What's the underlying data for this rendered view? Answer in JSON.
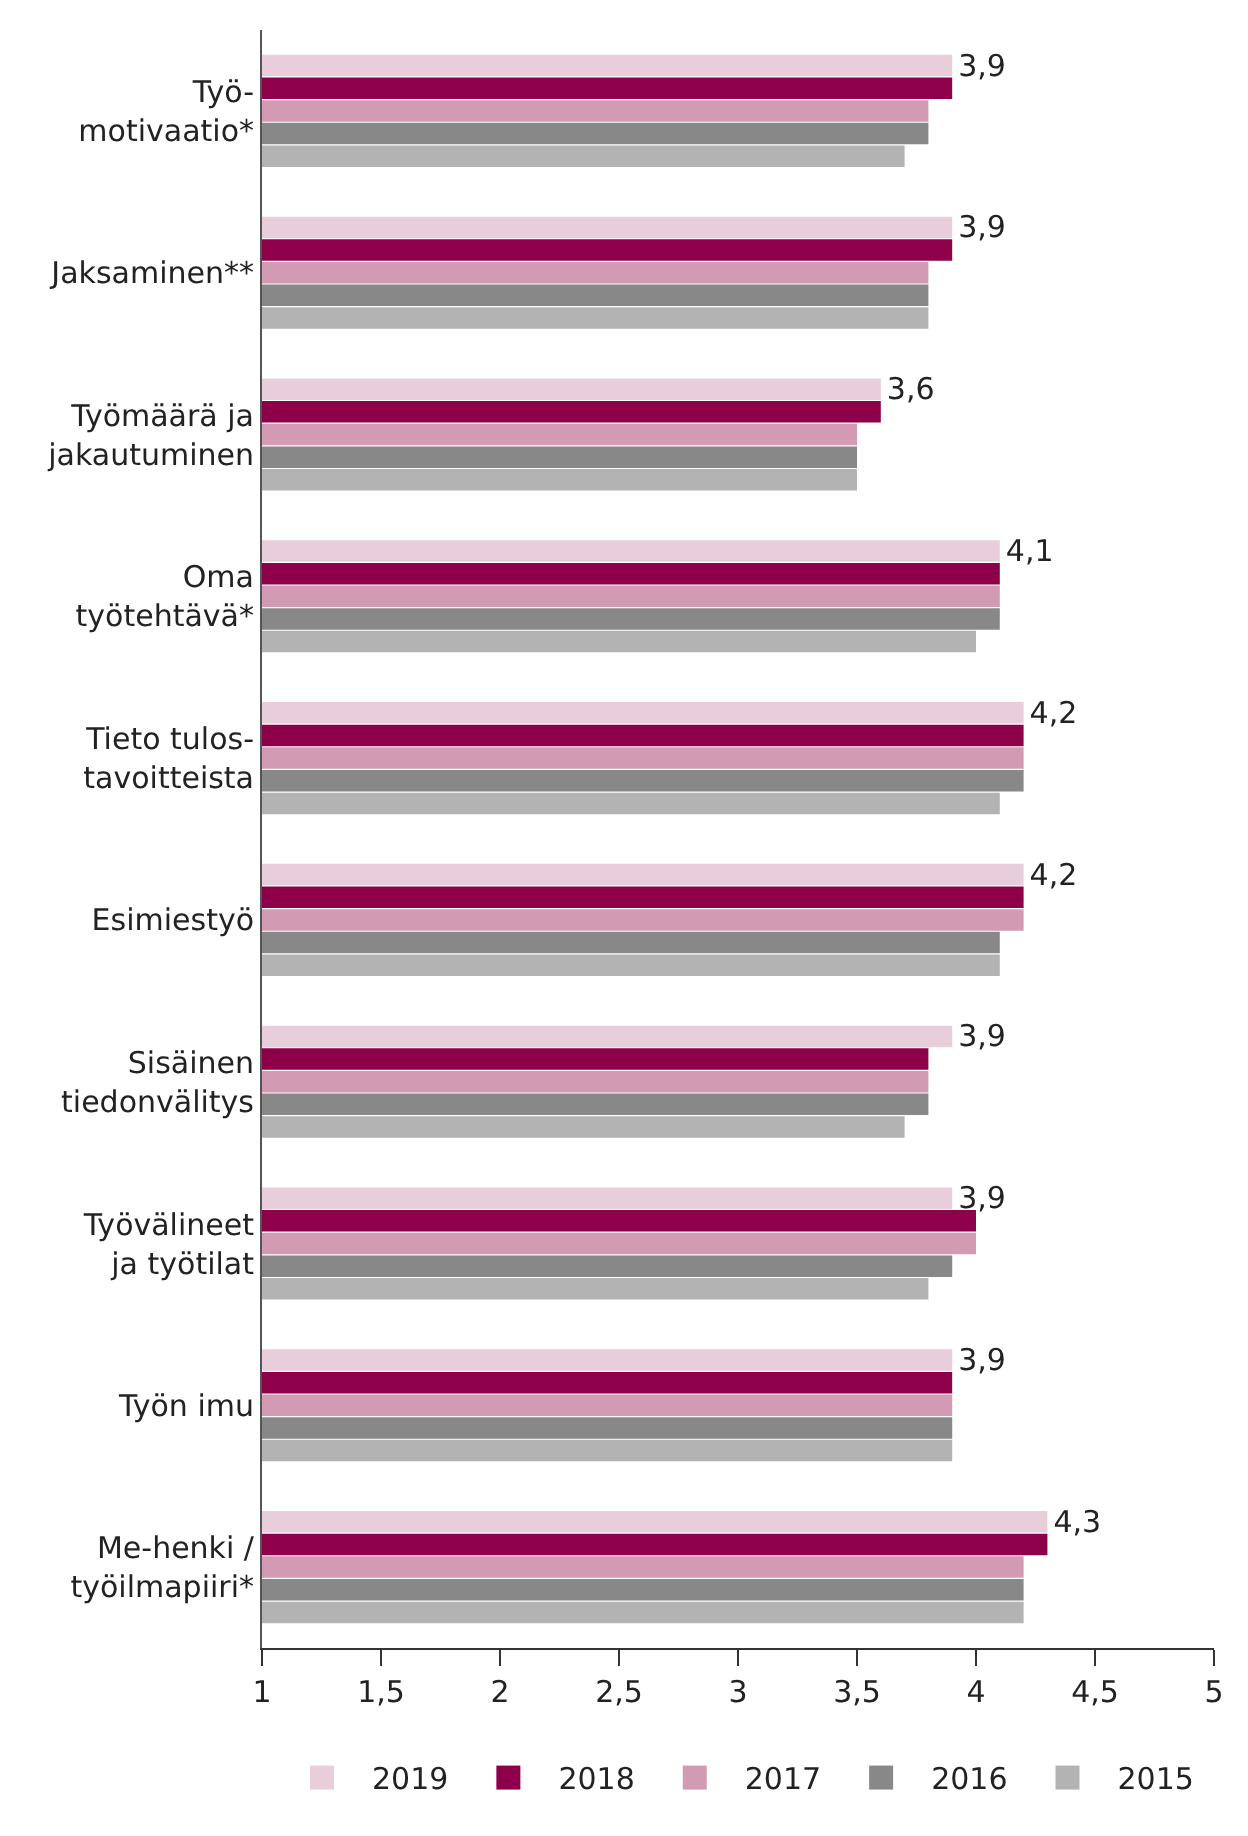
{
  "chart_data": {
    "type": "bar",
    "orientation": "horizontal",
    "categories": [
      "Työ-\nmotivaatio*",
      "Jaksaminen**",
      "Työmäärä ja\njakautuminen",
      "Oma\ntyötehtävä*",
      "Tieto tulos-\ntavoitteista",
      "Esimiestyö",
      "Sisäinen\ntiedonvälitys",
      "Työvälineet\nja työtilat",
      "Työn imu",
      "Me-henki /\ntyöilmapiiri*"
    ],
    "series": [
      {
        "name": "2019",
        "color": "#e8cddb",
        "values": [
          3.9,
          3.9,
          3.6,
          4.1,
          4.2,
          4.2,
          3.9,
          3.9,
          3.9,
          4.3
        ],
        "value_labels": [
          "3,9",
          "3,9",
          "3,6",
          "4,1",
          "4,2",
          "4,2",
          "3,9",
          "3,9",
          "3,9",
          "4,3"
        ]
      },
      {
        "name": "2018",
        "color": "#8e0049",
        "values": [
          3.9,
          3.9,
          3.6,
          4.1,
          4.2,
          4.2,
          3.8,
          4.0,
          3.9,
          4.3
        ]
      },
      {
        "name": "2017",
        "color": "#d29bb3",
        "values": [
          3.8,
          3.8,
          3.5,
          4.1,
          4.2,
          4.2,
          3.8,
          4.0,
          3.9,
          4.2
        ]
      },
      {
        "name": "2016",
        "color": "#888888",
        "values": [
          3.8,
          3.8,
          3.5,
          4.1,
          4.2,
          4.1,
          3.8,
          3.9,
          3.9,
          4.2
        ]
      },
      {
        "name": "2015",
        "color": "#b3b3b3",
        "values": [
          3.7,
          3.8,
          3.5,
          4.0,
          4.1,
          4.1,
          3.7,
          3.8,
          3.9,
          4.2
        ]
      }
    ],
    "xlim": [
      1,
      5
    ],
    "xticks": [
      1,
      {
        "value": 1.5,
        "label": "1,5"
      },
      2,
      {
        "value": 2.5,
        "label": "2,5"
      },
      3,
      {
        "value": 3.5,
        "label": "3,5"
      },
      4,
      {
        "value": 4.5,
        "label": "4,5"
      },
      5
    ],
    "legend": "bottom"
  }
}
